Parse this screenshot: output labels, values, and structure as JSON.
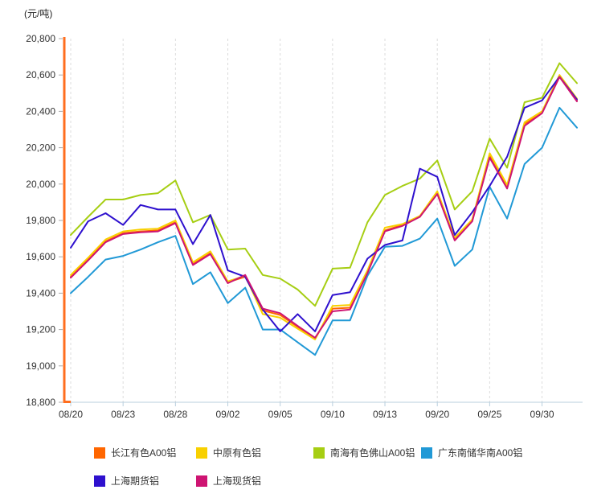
{
  "chart_data": {
    "type": "line",
    "title": "",
    "ylabel": "(元/吨)",
    "ylim": [
      18800,
      20800
    ],
    "ytick_step": 200,
    "n_points": 30,
    "label_every": 3,
    "x_labels": [
      "08/20",
      "08/23",
      "08/28",
      "09/02",
      "09/05",
      "09/10",
      "09/13",
      "09/20",
      "09/25",
      "09/30"
    ],
    "grid": "vertical-dashed",
    "legend_position": "bottom",
    "axis_colors": {
      "y_axis": "#FF6E1E",
      "x_axis": "#B8CFDE",
      "gridline": "#DCDCDC",
      "tick": "#AAAAAA",
      "label": "#333333"
    },
    "series": [
      {
        "key": "changjiang",
        "name": "长江有色A00铝",
        "color": "#FF6600",
        "values": [
          19490,
          19585,
          19685,
          19730,
          19740,
          19745,
          19790,
          19560,
          19620,
          19460,
          19490,
          19305,
          19280,
          19215,
          19150,
          19315,
          19320,
          19515,
          19745,
          19775,
          19820,
          19950,
          19695,
          19800,
          20160,
          19985,
          20330,
          20395,
          20590,
          20460
        ]
      },
      {
        "key": "zhongyuan",
        "name": "中原有色铝",
        "color": "#F8D000",
        "values": [
          19500,
          19595,
          19695,
          19740,
          19750,
          19755,
          19800,
          19570,
          19630,
          19465,
          19495,
          19285,
          19265,
          19205,
          19145,
          19330,
          19335,
          19525,
          19760,
          19780,
          19825,
          19960,
          19705,
          19805,
          20170,
          19995,
          20340,
          20400,
          20600,
          20470
        ]
      },
      {
        "key": "nanhai-foshan",
        "name": "南海有色佛山A00铝",
        "color": "#A6CE13",
        "values": [
          19720,
          19820,
          19915,
          19915,
          19940,
          19950,
          20020,
          19790,
          19830,
          19640,
          19645,
          19500,
          19480,
          19420,
          19330,
          19535,
          19540,
          19790,
          19940,
          19990,
          20030,
          20130,
          19860,
          19960,
          20250,
          20090,
          20450,
          20475,
          20665,
          20555
        ]
      },
      {
        "key": "guangdong-nanchu",
        "name": "广东南储华南A00铝",
        "color": "#2199D6",
        "values": [
          19400,
          19490,
          19585,
          19605,
          19640,
          19680,
          19715,
          19450,
          19515,
          19345,
          19430,
          19200,
          19200,
          19130,
          19060,
          19250,
          19250,
          19495,
          19655,
          19660,
          19700,
          19810,
          19550,
          19640,
          19985,
          19810,
          20110,
          20200,
          20420,
          20310
        ]
      },
      {
        "key": "shanghai-futures",
        "name": "上海期货铝",
        "color": "#2E10CE",
        "values": [
          19650,
          19795,
          19840,
          19775,
          19885,
          19860,
          19860,
          19670,
          19830,
          19525,
          19490,
          19310,
          19190,
          19285,
          19190,
          19390,
          19405,
          19590,
          19665,
          19690,
          20085,
          20040,
          19720,
          19845,
          19990,
          20150,
          20420,
          20460,
          20590,
          20465
        ]
      },
      {
        "key": "shanghai-spot",
        "name": "上海现货铝",
        "color": "#CE1472",
        "values": [
          19485,
          19580,
          19680,
          19725,
          19735,
          19740,
          19785,
          19555,
          19615,
          19455,
          19500,
          19315,
          19290,
          19220,
          19155,
          19300,
          19310,
          19510,
          19740,
          19770,
          19820,
          19945,
          19690,
          19795,
          20145,
          19975,
          20320,
          20390,
          20590,
          20455
        ]
      }
    ],
    "legend_rows": [
      [
        0,
        1,
        2,
        3
      ],
      [
        4,
        5
      ]
    ],
    "legend_x": [
      117,
      244,
      390,
      524
    ],
    "legend_y": [
      555,
      590
    ]
  }
}
